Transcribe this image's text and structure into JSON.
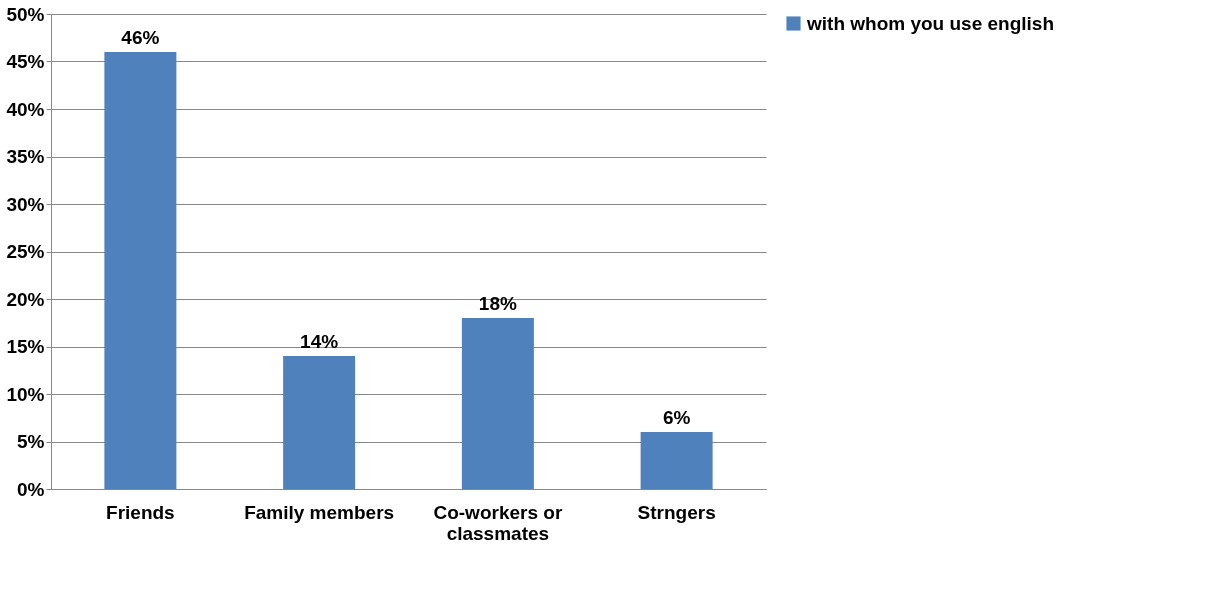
{
  "chart_data": {
    "type": "bar",
    "categories": [
      "Friends",
      "Family members",
      "Co-workers or classmates",
      "Strngers"
    ],
    "series": [
      {
        "name": "with whom you use english",
        "color": "#4f81bd",
        "values": [
          46,
          14,
          18,
          6
        ],
        "value_labels": [
          "46%",
          "14%",
          "18%",
          "6%"
        ]
      }
    ],
    "ylim": [
      0,
      50
    ],
    "yticks": [
      {
        "value": 0,
        "label": "0%"
      },
      {
        "value": 5,
        "label": "5%"
      },
      {
        "value": 10,
        "label": "10%"
      },
      {
        "value": 15,
        "label": "15%"
      },
      {
        "value": 20,
        "label": "20%"
      },
      {
        "value": 25,
        "label": "25%"
      },
      {
        "value": 30,
        "label": "30%"
      },
      {
        "value": 35,
        "label": "35%"
      },
      {
        "value": 40,
        "label": "40%"
      },
      {
        "value": 45,
        "label": "45%"
      },
      {
        "value": 50,
        "label": "50%"
      }
    ],
    "grid": "y",
    "legend": "right"
  }
}
